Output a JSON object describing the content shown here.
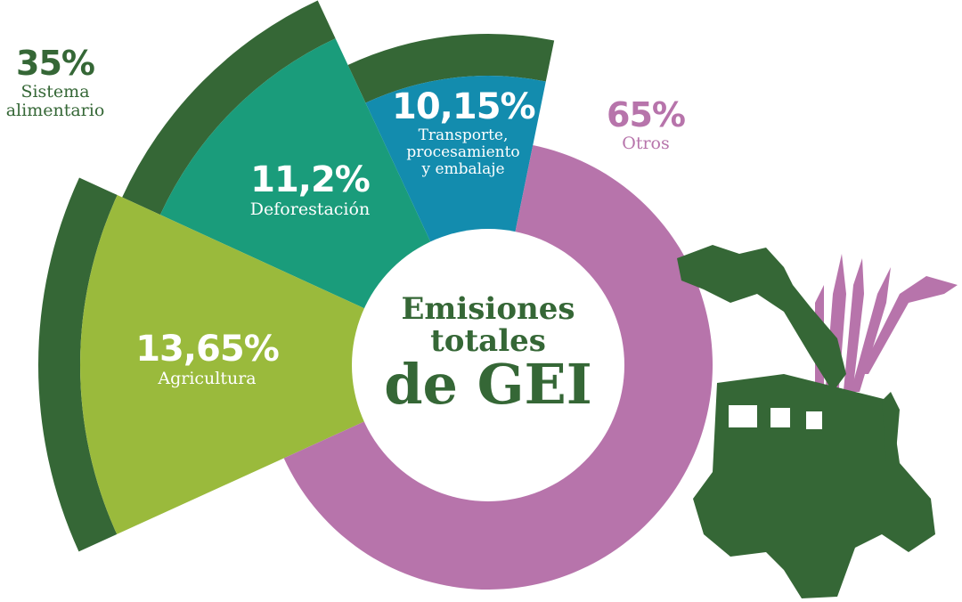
{
  "chart_data": {
    "type": "pie",
    "title": "Emisiones totales de GEI",
    "title_lines": [
      "Emisiones",
      "totales",
      "de GEI"
    ],
    "group": {
      "name": "Sistema alimentario",
      "value_label": "35%",
      "value": 35,
      "color": "#356736"
    },
    "slices": [
      {
        "name": "Transporte, procesamiento y embalaje",
        "lines": [
          "Transporte,",
          "procesamiento",
          "y embalaje"
        ],
        "value": 10.15,
        "value_label": "10,15%",
        "color": "#138cae",
        "group": "Sistema alimentario"
      },
      {
        "name": "Deforestación",
        "lines": [
          "Deforestación"
        ],
        "value": 11.2,
        "value_label": "11,2%",
        "color": "#1a9c7b",
        "group": "Sistema alimentario"
      },
      {
        "name": "Agricultura",
        "lines": [
          "Agricultura"
        ],
        "value": 13.65,
        "value_label": "13,65%",
        "color": "#9aba3c",
        "group": "Sistema alimentario"
      },
      {
        "name": "Otros",
        "lines": [
          "Otros"
        ],
        "value": 65,
        "value_label": "65%",
        "color": "#b774ab"
      }
    ],
    "group_lines": [
      "Sistema",
      "alimentario"
    ],
    "title_color": "#356736",
    "illustration": "tractor-with-plants"
  }
}
